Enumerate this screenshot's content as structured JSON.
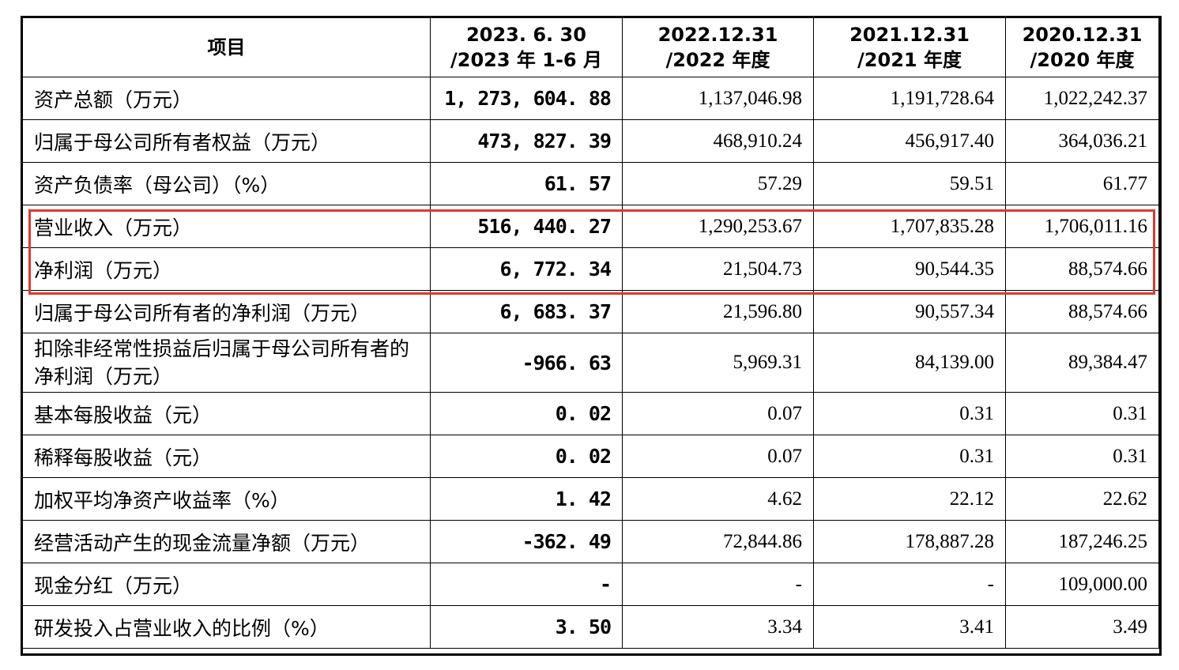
{
  "table": {
    "headers": [
      {
        "lines": [
          "项目"
        ]
      },
      {
        "lines": [
          "2023. 6. 30",
          "/2023 年 1-6 月"
        ]
      },
      {
        "lines": [
          "2022.12.31",
          "/2022 年度"
        ]
      },
      {
        "lines": [
          "2021.12.31",
          "/2021 年度"
        ]
      },
      {
        "lines": [
          "2020.12.31",
          "/2020 年度"
        ]
      }
    ],
    "rows": [
      {
        "label": "资产总额（万元）",
        "values": [
          "1, 273, 604. 88",
          "1,137,046.98",
          "1,191,728.64",
          "1,022,242.37"
        ]
      },
      {
        "label": "归属于母公司所有者权益（万元）",
        "values": [
          "473, 827. 39",
          "468,910.24",
          "456,917.40",
          "364,036.21"
        ]
      },
      {
        "label": "资产负债率（母公司）（%）",
        "values": [
          "61. 57",
          "57.29",
          "59.51",
          "61.77"
        ]
      },
      {
        "label": "营业收入（万元）",
        "values": [
          "516, 440. 27",
          "1,290,253.67",
          "1,707,835.28",
          "1,706,011.16"
        ]
      },
      {
        "label": "净利润（万元）",
        "values": [
          "6, 772. 34",
          "21,504.73",
          "90,544.35",
          "88,574.66"
        ]
      },
      {
        "label": "归属于母公司所有者的净利润（万元）",
        "values": [
          "6, 683. 37",
          "21,596.80",
          "90,557.34",
          "88,574.66"
        ]
      },
      {
        "label": "扣除非经常性损益后归属于母公司所有者的净利润（万元）",
        "values": [
          "-966. 63",
          "5,969.31",
          "84,139.00",
          "89,384.47"
        ]
      },
      {
        "label": "基本每股收益（元）",
        "values": [
          "0. 02",
          "0.07",
          "0.31",
          "0.31"
        ]
      },
      {
        "label": "稀释每股收益（元）",
        "values": [
          "0. 02",
          "0.07",
          "0.31",
          "0.31"
        ]
      },
      {
        "label": "加权平均净资产收益率（%）",
        "values": [
          "1. 42",
          "4.62",
          "22.12",
          "22.62"
        ]
      },
      {
        "label": "经营活动产生的现金流量净额（万元）",
        "values": [
          "-362. 49",
          "72,844.86",
          "178,887.28",
          "187,246.25"
        ]
      },
      {
        "label": "现金分红（万元）",
        "values": [
          "-",
          "-",
          "-",
          "109,000.00"
        ]
      },
      {
        "label": "研发投入占营业收入的比例（%）",
        "values": [
          "3. 50",
          "3.34",
          "3.41",
          "3.49"
        ]
      }
    ]
  },
  "highlight": {
    "rows": [
      "营业收入（万元）",
      "净利润（万元）"
    ],
    "color": "#e0382e"
  }
}
